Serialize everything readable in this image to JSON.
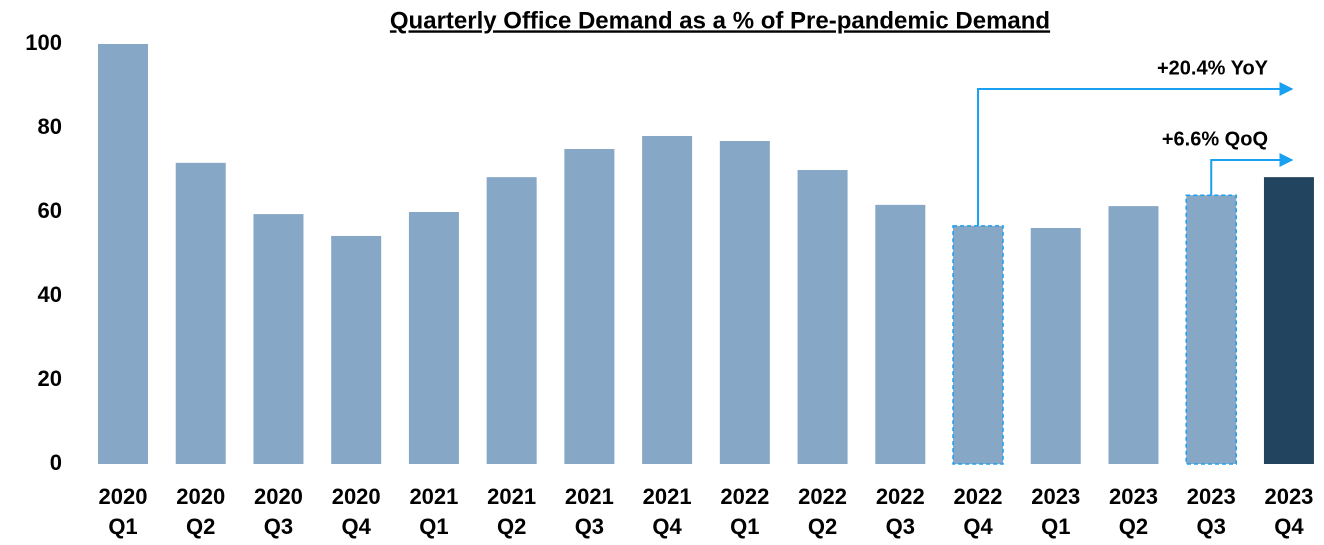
{
  "chart_data": {
    "type": "bar",
    "title": "Quarterly Office Demand as a % of Pre-pandemic Demand",
    "categories": [
      [
        "2020",
        "Q1"
      ],
      [
        "2020",
        "Q2"
      ],
      [
        "2020",
        "Q3"
      ],
      [
        "2020",
        "Q4"
      ],
      [
        "2021",
        "Q1"
      ],
      [
        "2021",
        "Q2"
      ],
      [
        "2021",
        "Q3"
      ],
      [
        "2021",
        "Q4"
      ],
      [
        "2022",
        "Q1"
      ],
      [
        "2022",
        "Q2"
      ],
      [
        "2022",
        "Q3"
      ],
      [
        "2022",
        "Q4"
      ],
      [
        "2023",
        "Q1"
      ],
      [
        "2023",
        "Q2"
      ],
      [
        "2023",
        "Q3"
      ],
      [
        "2023",
        "Q4"
      ]
    ],
    "values": [
      100,
      71.7,
      59.5,
      54.3,
      60,
      68.3,
      75,
      78.1,
      76.9,
      70,
      61.7,
      56.7,
      56.2,
      61.4,
      64,
      68.3
    ],
    "colors": [
      "#87a7c6",
      "#87a7c6",
      "#87a7c6",
      "#87a7c6",
      "#87a7c6",
      "#87a7c6",
      "#87a7c6",
      "#87a7c6",
      "#87a7c6",
      "#87a7c6",
      "#87a7c6",
      "#87a7c6",
      "#87a7c6",
      "#87a7c6",
      "#87a7c6",
      "#23445f"
    ],
    "ylim": [
      0,
      100
    ],
    "yticks": [
      0,
      20,
      40,
      60,
      80,
      100
    ],
    "grid": false,
    "annotations": [
      "+20.4% YoY",
      "+6.6% QoQ"
    ],
    "annotation_color": "#1aa0f0"
  }
}
